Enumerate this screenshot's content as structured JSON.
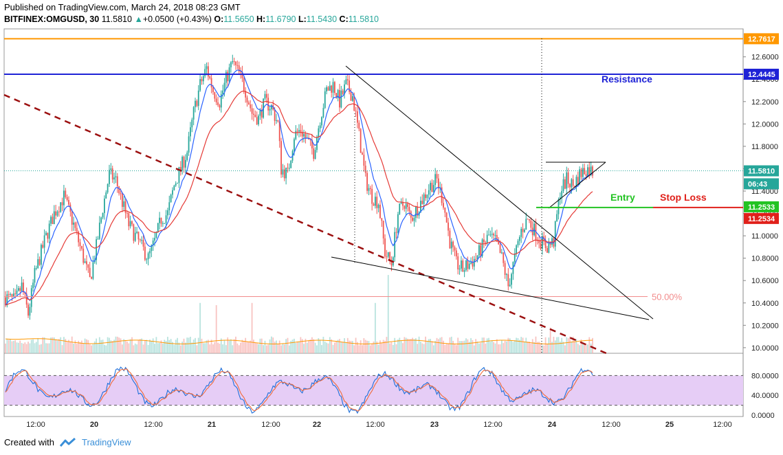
{
  "header": {
    "published": "Published on TradingView.com, March 24, 2018 08:23 GMT",
    "symbol": "BITFINEX:OMGUSD, 30",
    "last": "11.5810",
    "change": "+0.0500 (+0.43%)",
    "o_label": "O:",
    "o": "11.5650",
    "h_label": "H:",
    "h": "11.6790",
    "l_label": "L:",
    "l": "11.5430",
    "c_label": "C:",
    "c": "11.5810"
  },
  "footer": {
    "created_with": "Created with",
    "brand": "TradingView"
  },
  "colors": {
    "up": "#26a69a",
    "down": "#ef5350",
    "ema_fast": "#2962ff",
    "ema_slow": "#e53935",
    "orange": "#ff9800",
    "blue": "#1e22d6",
    "green": "#22c322",
    "red": "#e0201a",
    "stoch_band": "#e6cdf6"
  },
  "chart_data": [
    {
      "type": "candlestick",
      "y_axis_ticks": [
        "12.6000",
        "12.4000",
        "12.2000",
        "12.0000",
        "11.8000",
        "11.6000",
        "11.4000",
        "11.2000",
        "11.0000",
        "10.8000",
        "10.6000",
        "10.4000",
        "10.2000",
        "10.0000"
      ],
      "ylim": [
        9.95,
        12.85
      ],
      "x_axis_ticks": [
        "12:00",
        "20",
        "12:00",
        "21",
        "12:00",
        "22",
        "12:00",
        "23",
        "12:00",
        "24",
        "12:00",
        "25",
        "12:00"
      ],
      "price_tags": [
        {
          "label": "12.7617",
          "value": 12.7617,
          "color": "#ff9800"
        },
        {
          "label": "12.4445",
          "value": 12.4445,
          "color": "#1e22d6"
        },
        {
          "label": "11.5810",
          "value": 11.581,
          "color": "#26a69a"
        },
        {
          "label": "06:43",
          "value": 11.465,
          "color": "#26a69a"
        },
        {
          "label": "11.2533",
          "value": 11.2533,
          "color": "#22c322"
        },
        {
          "label": "11.2534",
          "value": 11.2534,
          "color": "#e0201a"
        }
      ],
      "horizontal_lines": [
        {
          "value": 12.7617,
          "color": "#ff9800"
        },
        {
          "value": 12.4445,
          "color": "#1e22d6"
        },
        {
          "value": 10.457,
          "color": "#f28b8b",
          "label": "50.00%"
        }
      ],
      "annotations": [
        {
          "text": "Resistance",
          "color": "#1e22d6"
        },
        {
          "text": "Entry",
          "color": "#22c322"
        },
        {
          "text": "Stop Loss",
          "color": "#e0201a"
        }
      ],
      "close_path": [
        [
          0,
          10.45
        ],
        [
          6,
          10.42
        ],
        [
          10,
          10.55
        ],
        [
          14,
          10.3
        ],
        [
          18,
          10.65
        ],
        [
          24,
          10.95
        ],
        [
          30,
          11.2
        ],
        [
          36,
          11.35
        ],
        [
          42,
          11.1
        ],
        [
          48,
          10.8
        ],
        [
          52,
          10.6
        ],
        [
          56,
          10.9
        ],
        [
          60,
          11.25
        ],
        [
          64,
          11.55
        ],
        [
          68,
          11.5
        ],
        [
          72,
          11.3
        ],
        [
          76,
          11.1
        ],
        [
          80,
          11.0
        ],
        [
          84,
          10.9
        ],
        [
          88,
          10.8
        ],
        [
          92,
          10.95
        ],
        [
          96,
          11.15
        ],
        [
          100,
          11.2
        ],
        [
          104,
          11.45
        ],
        [
          108,
          11.6
        ],
        [
          112,
          11.75
        ],
        [
          116,
          12.1
        ],
        [
          120,
          12.35
        ],
        [
          124,
          12.5
        ],
        [
          128,
          12.3
        ],
        [
          132,
          12.2
        ],
        [
          136,
          12.4
        ],
        [
          140,
          12.55
        ],
        [
          144,
          12.45
        ],
        [
          148,
          12.3
        ],
        [
          152,
          12.1
        ],
        [
          156,
          12.05
        ],
        [
          160,
          12.2
        ],
        [
          164,
          12.15
        ],
        [
          168,
          12.0
        ],
        [
          170,
          11.6
        ],
        [
          174,
          11.55
        ],
        [
          178,
          11.9
        ],
        [
          182,
          11.95
        ],
        [
          186,
          11.85
        ],
        [
          190,
          11.75
        ],
        [
          194,
          12.05
        ],
        [
          198,
          12.3
        ],
        [
          202,
          12.35
        ],
        [
          206,
          12.2
        ],
        [
          210,
          12.35
        ],
        [
          214,
          12.25
        ],
        [
          218,
          11.9
        ],
        [
          222,
          11.5
        ],
        [
          226,
          11.35
        ],
        [
          230,
          11.3
        ],
        [
          234,
          10.85
        ],
        [
          238,
          10.75
        ],
        [
          242,
          11.2
        ],
        [
          246,
          11.3
        ],
        [
          250,
          11.15
        ],
        [
          254,
          11.25
        ],
        [
          258,
          11.35
        ],
        [
          262,
          11.45
        ],
        [
          266,
          11.5
        ],
        [
          270,
          11.3
        ],
        [
          274,
          10.95
        ],
        [
          278,
          10.75
        ],
        [
          282,
          10.7
        ],
        [
          286,
          10.75
        ],
        [
          290,
          10.8
        ],
        [
          294,
          10.9
        ],
        [
          298,
          11.0
        ],
        [
          302,
          10.95
        ],
        [
          306,
          10.8
        ],
        [
          310,
          10.55
        ],
        [
          314,
          10.8
        ],
        [
          318,
          11.05
        ],
        [
          322,
          11.15
        ],
        [
          326,
          11.05
        ],
        [
          330,
          10.95
        ],
        [
          334,
          10.9
        ],
        [
          338,
          10.95
        ],
        [
          342,
          11.4
        ],
        [
          346,
          11.5
        ],
        [
          350,
          11.45
        ],
        [
          354,
          11.55
        ],
        [
          358,
          11.6
        ],
        [
          362,
          11.58
        ]
      ],
      "volume_spikes": [
        [
          120,
          10.4
        ],
        [
          130,
          10.38
        ],
        [
          152,
          10.4
        ],
        [
          228,
          10.4
        ],
        [
          236,
          10.65
        ],
        [
          336,
          10.18
        ]
      ],
      "stoch_ticks": [
        "80.0000",
        "40.0000",
        "0.0000"
      ],
      "stoch_band": [
        20,
        80
      ]
    }
  ]
}
